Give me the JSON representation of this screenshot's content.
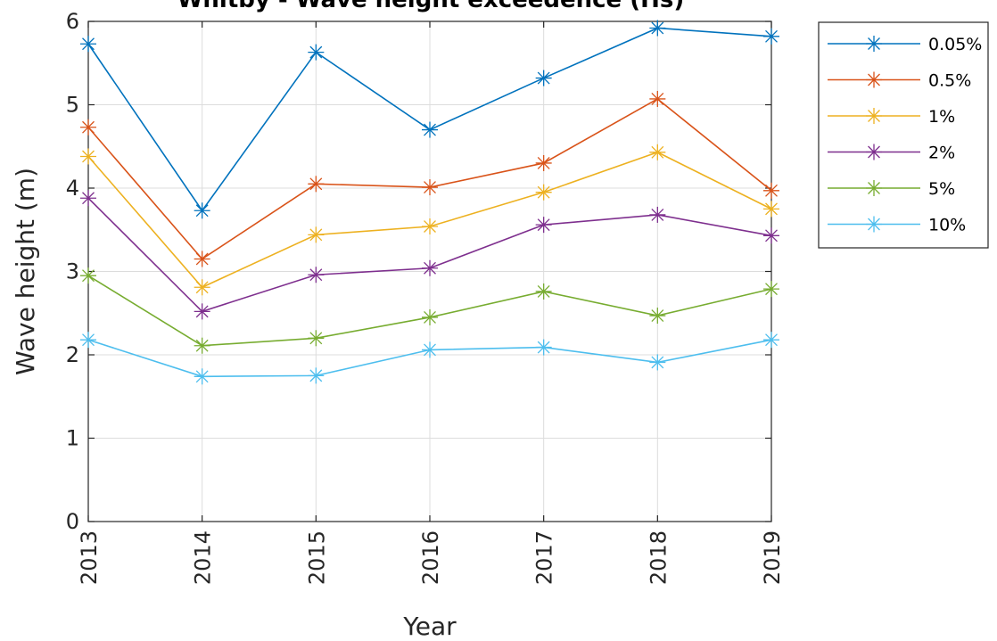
{
  "chart_data": {
    "type": "line",
    "title": "Whitby - Wave height exceedence (Hs)",
    "xlabel": "Year",
    "ylabel": "Wave height (m)",
    "x": [
      2013,
      2014,
      2015,
      2016,
      2017,
      2018,
      2019
    ],
    "xtick_labels": [
      "2013",
      "2014",
      "2015",
      "2016",
      "2017",
      "2018",
      "2019"
    ],
    "ylim": [
      0,
      6
    ],
    "ytick_labels": [
      "0",
      "1",
      "2",
      "3",
      "4",
      "5",
      "6"
    ],
    "grid": true,
    "legend_position": "outside-top-right",
    "marker": "asterisk",
    "series": [
      {
        "name": "0.05%",
        "color": "#0072BD",
        "values": [
          5.73,
          3.73,
          5.63,
          4.7,
          5.32,
          5.92,
          5.82
        ]
      },
      {
        "name": "0.5%",
        "color": "#D95319",
        "values": [
          4.73,
          3.15,
          4.05,
          4.01,
          4.3,
          5.07,
          3.97
        ]
      },
      {
        "name": "1%",
        "color": "#EDB120",
        "values": [
          4.38,
          2.81,
          3.44,
          3.54,
          3.95,
          4.43,
          3.75
        ]
      },
      {
        "name": "2%",
        "color": "#7E2F8E",
        "values": [
          3.88,
          2.52,
          2.96,
          3.04,
          3.56,
          3.68,
          3.43
        ]
      },
      {
        "name": "5%",
        "color": "#77AC30",
        "values": [
          2.95,
          2.11,
          2.2,
          2.45,
          2.76,
          2.47,
          2.79
        ]
      },
      {
        "name": "10%",
        "color": "#4DBEEE",
        "values": [
          2.18,
          1.74,
          1.75,
          2.06,
          2.09,
          1.91,
          2.18
        ]
      }
    ]
  }
}
